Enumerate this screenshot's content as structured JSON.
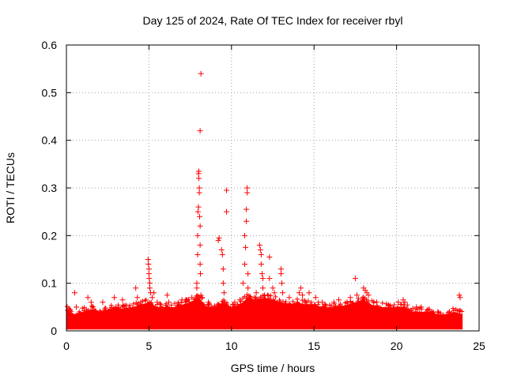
{
  "chart_data": {
    "type": "scatter",
    "title": "Day 125 of 2024, Rate Of TEC Index for receiver rbyl",
    "xlabel": "GPS time / hours",
    "ylabel": "ROTI / TECUs",
    "xlim": [
      0,
      25
    ],
    "ylim": [
      0,
      0.6
    ],
    "xticks": [
      0,
      5,
      10,
      15,
      20,
      25
    ],
    "xtick_labels": [
      "0",
      "5",
      "10",
      "15",
      "20",
      "25"
    ],
    "yticks": [
      0,
      0.1,
      0.2,
      0.3,
      0.4,
      0.5,
      0.6
    ],
    "ytick_labels": [
      "0",
      "0.1",
      "0.2",
      "0.3",
      "0.4",
      "0.5",
      "0.6"
    ],
    "grid": true,
    "marker": "+",
    "series": [
      {
        "name": "ROTI",
        "color": "#ff0000",
        "points": [
          [
            0.2,
            0.045
          ],
          [
            0.5,
            0.08
          ],
          [
            0.6,
            0.05
          ],
          [
            1.3,
            0.07
          ],
          [
            1.5,
            0.06
          ],
          [
            2.2,
            0.06
          ],
          [
            2.9,
            0.07
          ],
          [
            3.4,
            0.065
          ],
          [
            4.2,
            0.09
          ],
          [
            4.3,
            0.07
          ],
          [
            4.5,
            0.06
          ],
          [
            4.95,
            0.15
          ],
          [
            4.97,
            0.14
          ],
          [
            5.0,
            0.13
          ],
          [
            5.0,
            0.12
          ],
          [
            5.02,
            0.11
          ],
          [
            5.05,
            0.1
          ],
          [
            5.05,
            0.09
          ],
          [
            5.1,
            0.08
          ],
          [
            5.2,
            0.07
          ],
          [
            5.3,
            0.08
          ],
          [
            5.5,
            0.06
          ],
          [
            6.1,
            0.075
          ],
          [
            6.2,
            0.06
          ],
          [
            7.0,
            0.065
          ],
          [
            7.2,
            0.06
          ],
          [
            7.6,
            0.07
          ],
          [
            7.9,
            0.1
          ],
          [
            7.9,
            0.09
          ],
          [
            7.95,
            0.16
          ],
          [
            7.95,
            0.2
          ],
          [
            7.97,
            0.25
          ],
          [
            8.0,
            0.26
          ],
          [
            8.0,
            0.33
          ],
          [
            8.02,
            0.335
          ],
          [
            8.02,
            0.32
          ],
          [
            8.05,
            0.3
          ],
          [
            8.05,
            0.29
          ],
          [
            8.07,
            0.24
          ],
          [
            8.1,
            0.22
          ],
          [
            8.1,
            0.18
          ],
          [
            8.1,
            0.14
          ],
          [
            8.12,
            0.12
          ],
          [
            8.15,
            0.075
          ],
          [
            8.1,
            0.42
          ],
          [
            8.15,
            0.54
          ],
          [
            8.2,
            0.07
          ],
          [
            8.6,
            0.06
          ],
          [
            9.2,
            0.19
          ],
          [
            9.25,
            0.195
          ],
          [
            9.4,
            0.17
          ],
          [
            9.45,
            0.16
          ],
          [
            9.5,
            0.13
          ],
          [
            9.5,
            0.1
          ],
          [
            9.55,
            0.08
          ],
          [
            9.6,
            0.06
          ],
          [
            9.7,
            0.295
          ],
          [
            9.7,
            0.25
          ],
          [
            10.2,
            0.06
          ],
          [
            10.5,
            0.065
          ],
          [
            10.7,
            0.1
          ],
          [
            10.8,
            0.14
          ],
          [
            10.8,
            0.2
          ],
          [
            10.85,
            0.175
          ],
          [
            10.9,
            0.23
          ],
          [
            10.9,
            0.255
          ],
          [
            10.95,
            0.29
          ],
          [
            10.95,
            0.3
          ],
          [
            11.0,
            0.12
          ],
          [
            11.0,
            0.09
          ],
          [
            11.05,
            0.07
          ],
          [
            11.5,
            0.06
          ],
          [
            11.5,
            0.08
          ],
          [
            11.7,
            0.18
          ],
          [
            11.75,
            0.17
          ],
          [
            11.8,
            0.16
          ],
          [
            11.8,
            0.14
          ],
          [
            11.85,
            0.12
          ],
          [
            11.9,
            0.11
          ],
          [
            11.9,
            0.09
          ],
          [
            12.0,
            0.075
          ],
          [
            12.3,
            0.155
          ],
          [
            12.3,
            0.11
          ],
          [
            12.5,
            0.09
          ],
          [
            12.6,
            0.08
          ],
          [
            13.0,
            0.13
          ],
          [
            13.0,
            0.12
          ],
          [
            13.05,
            0.1
          ],
          [
            13.1,
            0.08
          ],
          [
            13.5,
            0.07
          ],
          [
            14.1,
            0.08
          ],
          [
            14.2,
            0.09
          ],
          [
            14.3,
            0.075
          ],
          [
            14.5,
            0.06
          ],
          [
            14.7,
            0.08
          ],
          [
            15.1,
            0.07
          ],
          [
            15.5,
            0.06
          ],
          [
            16.2,
            0.06
          ],
          [
            16.5,
            0.065
          ],
          [
            17.0,
            0.06
          ],
          [
            17.2,
            0.07
          ],
          [
            17.5,
            0.11
          ],
          [
            17.6,
            0.075
          ],
          [
            18.0,
            0.09
          ],
          [
            18.1,
            0.085
          ],
          [
            18.2,
            0.08
          ],
          [
            18.3,
            0.075
          ],
          [
            18.8,
            0.06
          ],
          [
            19.5,
            0.055
          ],
          [
            20.1,
            0.06
          ],
          [
            20.4,
            0.065
          ],
          [
            20.5,
            0.06
          ],
          [
            21.2,
            0.05
          ],
          [
            21.5,
            0.05
          ],
          [
            22.0,
            0.045
          ],
          [
            22.5,
            0.04
          ],
          [
            23.2,
            0.04
          ],
          [
            23.8,
            0.075
          ],
          [
            23.85,
            0.07
          ]
        ]
      }
    ],
    "dense_band": [
      {
        "x": 0.0,
        "y": 0.045
      },
      {
        "x": 0.5,
        "y": 0.035
      },
      {
        "x": 1.0,
        "y": 0.04
      },
      {
        "x": 1.5,
        "y": 0.045
      },
      {
        "x": 2.0,
        "y": 0.04
      },
      {
        "x": 2.5,
        "y": 0.045
      },
      {
        "x": 3.0,
        "y": 0.05
      },
      {
        "x": 3.5,
        "y": 0.045
      },
      {
        "x": 4.0,
        "y": 0.05
      },
      {
        "x": 4.5,
        "y": 0.055
      },
      {
        "x": 5.0,
        "y": 0.06
      },
      {
        "x": 5.5,
        "y": 0.05
      },
      {
        "x": 6.0,
        "y": 0.05
      },
      {
        "x": 6.5,
        "y": 0.05
      },
      {
        "x": 7.0,
        "y": 0.055
      },
      {
        "x": 7.5,
        "y": 0.06
      },
      {
        "x": 8.0,
        "y": 0.07
      },
      {
        "x": 8.5,
        "y": 0.05
      },
      {
        "x": 9.0,
        "y": 0.05
      },
      {
        "x": 9.5,
        "y": 0.06
      },
      {
        "x": 10.0,
        "y": 0.05
      },
      {
        "x": 10.5,
        "y": 0.055
      },
      {
        "x": 11.0,
        "y": 0.07
      },
      {
        "x": 11.5,
        "y": 0.065
      },
      {
        "x": 12.0,
        "y": 0.07
      },
      {
        "x": 12.5,
        "y": 0.065
      },
      {
        "x": 13.0,
        "y": 0.06
      },
      {
        "x": 13.5,
        "y": 0.055
      },
      {
        "x": 14.0,
        "y": 0.06
      },
      {
        "x": 14.5,
        "y": 0.055
      },
      {
        "x": 15.0,
        "y": 0.055
      },
      {
        "x": 15.5,
        "y": 0.05
      },
      {
        "x": 16.0,
        "y": 0.05
      },
      {
        "x": 16.5,
        "y": 0.05
      },
      {
        "x": 17.0,
        "y": 0.055
      },
      {
        "x": 17.5,
        "y": 0.06
      },
      {
        "x": 18.0,
        "y": 0.065
      },
      {
        "x": 18.5,
        "y": 0.055
      },
      {
        "x": 19.0,
        "y": 0.05
      },
      {
        "x": 19.5,
        "y": 0.05
      },
      {
        "x": 20.0,
        "y": 0.05
      },
      {
        "x": 20.5,
        "y": 0.05
      },
      {
        "x": 21.0,
        "y": 0.04
      },
      {
        "x": 21.5,
        "y": 0.04
      },
      {
        "x": 22.0,
        "y": 0.04
      },
      {
        "x": 22.5,
        "y": 0.035
      },
      {
        "x": 23.0,
        "y": 0.035
      },
      {
        "x": 23.5,
        "y": 0.04
      },
      {
        "x": 24.0,
        "y": 0.035
      }
    ],
    "data_end_hour": 24,
    "band_floor": 0.003
  },
  "colors": {
    "marker": "#ff0000",
    "grid": "#a0a0a0",
    "axes": "#000000",
    "background": "#ffffff"
  }
}
